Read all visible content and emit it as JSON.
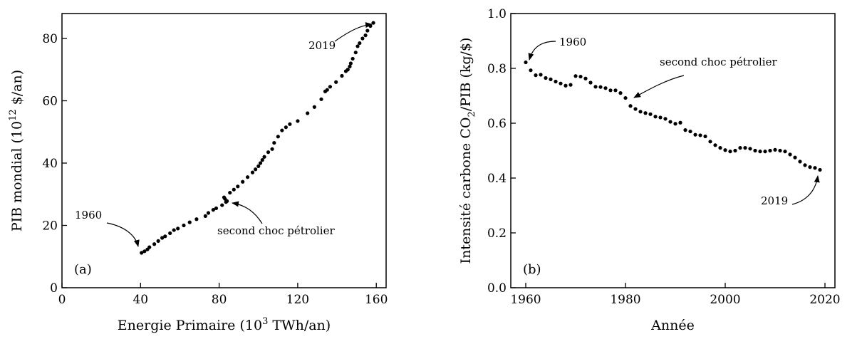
{
  "chart_data": [
    {
      "type": "scatter",
      "panel_label": "(a)",
      "xlabel_main": "Energie Primaire (10",
      "xlabel_sup": "3",
      "xlabel_rest": " TWh/an)",
      "ylabel_main": "PIB mondial (10",
      "ylabel_sup": "12",
      "ylabel_rest": " $/an)",
      "xlim": [
        0,
        165
      ],
      "ylim": [
        0,
        88
      ],
      "xticks": [
        0,
        40,
        80,
        120,
        160
      ],
      "yticks": [
        0,
        20,
        40,
        60,
        80
      ],
      "grid": false,
      "color": "#000000",
      "annotations": [
        {
          "text": "1960",
          "target": [
            40.5,
            11.5
          ]
        },
        {
          "text": "second choc pétrolier",
          "target": [
            84.5,
            27.5
          ]
        },
        {
          "text": "2019",
          "target": [
            158.5,
            85
          ]
        }
      ],
      "series": [
        {
          "x": [
            40.5,
            42.0,
            43.5,
            44.5,
            47.0,
            49.0,
            51.0,
            52.5,
            55.0,
            57.0,
            59.0,
            62.0,
            65.0,
            68.5,
            73.0,
            74.5,
            77.0,
            78.5,
            81.5,
            82.5,
            83.0,
            84.0,
            83.5,
            85.5,
            87.5,
            89.5,
            92.0,
            94.5,
            97.0,
            98.5,
            100.0,
            101.0,
            102.0,
            103.0,
            105.0,
            107.0,
            108.0,
            110.0,
            112.0,
            114.0,
            116.0,
            120.0,
            125.0,
            128.5,
            132.0,
            134.0,
            135.0,
            136.5,
            139.5,
            142.5,
            144.5,
            145.5,
            146.5,
            147.0,
            148.0,
            149.5,
            150.5,
            151.5,
            153.0,
            154.5,
            155.5,
            157.0,
            158.5
          ],
          "y": [
            11.2,
            11.7,
            12.3,
            13.0,
            14.0,
            15.0,
            16.0,
            16.5,
            17.5,
            18.5,
            19.0,
            20.0,
            21.0,
            22.0,
            23.0,
            24.0,
            25.0,
            25.5,
            26.5,
            29.0,
            28.5,
            27.8,
            27.5,
            30.5,
            31.5,
            32.5,
            34.0,
            35.5,
            37.0,
            38.0,
            39.0,
            40.0,
            41.0,
            42.0,
            43.5,
            44.5,
            46.5,
            48.5,
            50.5,
            51.5,
            52.5,
            53.5,
            56.0,
            58.0,
            60.5,
            63.0,
            63.5,
            64.5,
            66.0,
            68.0,
            69.5,
            70.0,
            71.0,
            72.0,
            73.5,
            75.5,
            77.5,
            78.5,
            80.0,
            81.0,
            82.5,
            84.0,
            85.0
          ]
        }
      ]
    },
    {
      "type": "scatter",
      "panel_label": "(b)",
      "xlabel": "Année",
      "ylabel_main": "Intensité carbone CO",
      "ylabel_sub": "2",
      "ylabel_rest": "/PIB (kg/$)",
      "xlim": [
        1957,
        2022
      ],
      "ylim": [
        0.0,
        1.0
      ],
      "xticks": [
        1960,
        1980,
        2000,
        2020
      ],
      "ytick_labels": [
        "0.0",
        "0.2",
        "0.4",
        "0.6",
        "0.8",
        "1.0"
      ],
      "yticks": [
        0.0,
        0.2,
        0.4,
        0.6,
        0.8,
        1.0
      ],
      "grid": false,
      "color": "#000000",
      "annotations": [
        {
          "text": "1960",
          "target": [
            1960,
            0.82
          ]
        },
        {
          "text": "second choc pétrolier",
          "target": [
            1980,
            0.69
          ]
        },
        {
          "text": "2019",
          "target": [
            2019,
            0.43
          ]
        }
      ],
      "series": [
        {
          "x": [
            1960,
            1961,
            1962,
            1963,
            1964,
            1965,
            1966,
            1967,
            1968,
            1969,
            1970,
            1971,
            1972,
            1973,
            1974,
            1975,
            1976,
            1977,
            1978,
            1979,
            1980,
            1981,
            1982,
            1983,
            1984,
            1985,
            1986,
            1987,
            1988,
            1989,
            1990,
            1991,
            1992,
            1993,
            1994,
            1995,
            1996,
            1997,
            1998,
            1999,
            2000,
            2001,
            2002,
            2003,
            2004,
            2005,
            2006,
            2007,
            2008,
            2009,
            2010,
            2011,
            2012,
            2013,
            2014,
            2015,
            2016,
            2017,
            2018,
            2019
          ],
          "y": [
            0.822,
            0.793,
            0.775,
            0.777,
            0.765,
            0.76,
            0.752,
            0.745,
            0.737,
            0.74,
            0.772,
            0.77,
            0.763,
            0.748,
            0.733,
            0.732,
            0.728,
            0.72,
            0.72,
            0.71,
            0.692,
            0.663,
            0.652,
            0.642,
            0.637,
            0.633,
            0.624,
            0.621,
            0.616,
            0.605,
            0.598,
            0.602,
            0.575,
            0.57,
            0.558,
            0.556,
            0.552,
            0.533,
            0.52,
            0.51,
            0.502,
            0.497,
            0.5,
            0.51,
            0.51,
            0.507,
            0.5,
            0.497,
            0.497,
            0.5,
            0.503,
            0.5,
            0.497,
            0.486,
            0.475,
            0.46,
            0.447,
            0.44,
            0.437,
            0.43
          ]
        }
      ]
    }
  ]
}
